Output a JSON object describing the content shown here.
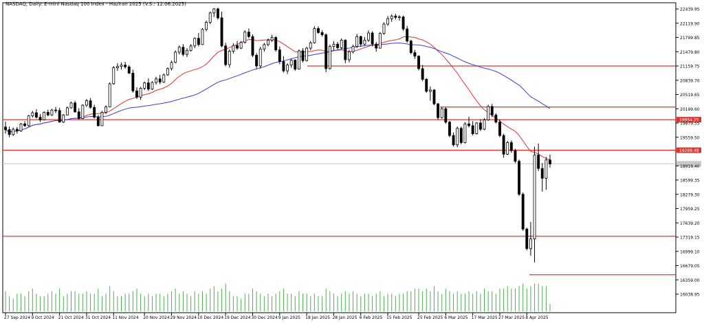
{
  "chart_data": {
    "type": "candlestick",
    "title": "NASDAQ, Daily: E-mini Nasdaq 100 Index - Haziran 2025 (V.S.: 12.06.2025)",
    "colors": {
      "bull": "#ffffff",
      "bear": "#000000",
      "ma_fast": "#e0322d",
      "ma_slow": "#3a3ad8",
      "volume": "#4caf50",
      "level_line": "#e0322d",
      "level_label_bg": "#e0322d"
    },
    "y_ticks": [
      "22439.95",
      "22119.90",
      "21799.85",
      "21479.80",
      "21159.75",
      "20839.70",
      "20519.65",
      "20199.60",
      "19879.55",
      "19559.50",
      "18919.40",
      "18599.35",
      "18279.30",
      "17959.25",
      "17639.20",
      "17319.15",
      "16999.10",
      "16679.05",
      "16359.00",
      "16038.95"
    ],
    "x_ticks": [
      "27 Sep 2024",
      "9 Oct 2024",
      "21 Oct 2024",
      "31 Oct 2024",
      "11 Nov 2024",
      "20 Nov 2024",
      "29 Nov 2024",
      "10 Dec 2024",
      "19 Dec 2024",
      "30 Dec 2024",
      "9 Jan 2025",
      "18 Jan 2025",
      "28 Jan 2025",
      "6 Feb 2025",
      "15 Feb 2025",
      "25 Feb 2025",
      "6 Mar 2025",
      "17 Mar 2025",
      "27 Mar 2025",
      "8 Apr 2025"
    ],
    "horizontal_levels": [
      {
        "price": 21159.75,
        "label": ""
      },
      {
        "price": 20238,
        "label": ""
      },
      {
        "price": 19954.25,
        "label": "19954.25"
      },
      {
        "price": 19269.48,
        "label": "19269.48"
      },
      {
        "price": 17339,
        "label": ""
      },
      {
        "price": 16475,
        "label": ""
      }
    ],
    "current_price": 18964,
    "candles": [
      [
        19790,
        19910,
        19640,
        19730
      ],
      [
        19730,
        19800,
        19560,
        19620
      ],
      [
        19620,
        19780,
        19590,
        19740
      ],
      [
        19740,
        19790,
        19640,
        19700
      ],
      [
        19700,
        19880,
        19680,
        19860
      ],
      [
        19860,
        19920,
        19790,
        19820
      ],
      [
        19820,
        20060,
        19800,
        20040
      ],
      [
        20040,
        20150,
        20000,
        20110
      ],
      [
        20110,
        20190,
        19980,
        20010
      ],
      [
        20010,
        20080,
        19900,
        19950
      ],
      [
        19950,
        20140,
        19940,
        20120
      ],
      [
        20120,
        20180,
        20030,
        20060
      ],
      [
        20060,
        20200,
        20040,
        20170
      ],
      [
        20170,
        20240,
        20100,
        20160
      ],
      [
        20160,
        20220,
        19890,
        19900
      ],
      [
        19900,
        20080,
        19880,
        20060
      ],
      [
        20060,
        20250,
        20050,
        20220
      ],
      [
        20220,
        20360,
        20200,
        20330
      ],
      [
        20330,
        20380,
        20110,
        20130
      ],
      [
        20130,
        20210,
        19950,
        19980
      ],
      [
        19980,
        20300,
        19970,
        20280
      ],
      [
        20280,
        20420,
        20240,
        20380
      ],
      [
        20380,
        20440,
        20200,
        20230
      ],
      [
        20230,
        20290,
        19980,
        20010
      ],
      [
        20010,
        20060,
        19800,
        19820
      ],
      [
        19820,
        20150,
        19810,
        20120
      ],
      [
        20120,
        20280,
        20080,
        20240
      ],
      [
        20240,
        20790,
        20230,
        20760
      ],
      [
        20760,
        21160,
        20740,
        21120
      ],
      [
        21120,
        21220,
        21050,
        21150
      ],
      [
        21150,
        21240,
        21080,
        21180
      ],
      [
        21180,
        21250,
        21100,
        21140
      ],
      [
        21140,
        21180,
        20980,
        21000
      ],
      [
        21000,
        21080,
        20560,
        20600
      ],
      [
        20600,
        20680,
        20420,
        20460
      ],
      [
        20460,
        20690,
        20400,
        20660
      ],
      [
        20660,
        20810,
        20620,
        20780
      ],
      [
        20780,
        20880,
        20600,
        20640
      ],
      [
        20640,
        20820,
        20620,
        20790
      ],
      [
        20790,
        20920,
        20740,
        20870
      ],
      [
        20870,
        20960,
        20750,
        20800
      ],
      [
        20800,
        20990,
        20780,
        20960
      ],
      [
        20960,
        21130,
        20940,
        21100
      ],
      [
        21100,
        21280,
        21060,
        21240
      ],
      [
        21240,
        21510,
        21220,
        21470
      ],
      [
        21470,
        21620,
        21420,
        21580
      ],
      [
        21580,
        21650,
        21380,
        21420
      ],
      [
        21420,
        21560,
        21360,
        21510
      ],
      [
        21510,
        21650,
        21480,
        21610
      ],
      [
        21610,
        21800,
        21560,
        21780
      ],
      [
        21780,
        21900,
        21600,
        21640
      ],
      [
        21640,
        22010,
        21630,
        21980
      ],
      [
        21980,
        22180,
        21940,
        22140
      ],
      [
        22140,
        22380,
        22100,
        22350
      ],
      [
        22350,
        22460,
        22260,
        22440
      ],
      [
        22440,
        22470,
        22200,
        22240
      ],
      [
        22240,
        22380,
        21580,
        21610
      ],
      [
        21610,
        21680,
        21150,
        21190
      ],
      [
        21190,
        21530,
        21120,
        21490
      ],
      [
        21490,
        21670,
        21440,
        21620
      ],
      [
        21620,
        21720,
        21520,
        21560
      ],
      [
        21560,
        21720,
        21540,
        21690
      ],
      [
        21690,
        21960,
        21660,
        21920
      ],
      [
        21920,
        22000,
        21780,
        21820
      ],
      [
        21820,
        21870,
        21360,
        21400
      ],
      [
        21400,
        21450,
        21100,
        21160
      ],
      [
        21160,
        21590,
        21100,
        21540
      ],
      [
        21540,
        21680,
        21480,
        21640
      ],
      [
        21640,
        21780,
        21600,
        21740
      ],
      [
        21740,
        21860,
        21700,
        21800
      ],
      [
        21800,
        21830,
        21480,
        21520
      ],
      [
        21520,
        21600,
        21200,
        21260
      ],
      [
        21260,
        21380,
        21010,
        21050
      ],
      [
        21050,
        21220,
        20980,
        21180
      ],
      [
        21180,
        21320,
        21120,
        21290
      ],
      [
        21290,
        21310,
        21050,
        21090
      ],
      [
        21090,
        21530,
        21080,
        21500
      ],
      [
        21500,
        21560,
        21240,
        21280
      ],
      [
        21280,
        21590,
        21260,
        21560
      ],
      [
        21560,
        21720,
        21510,
        21680
      ],
      [
        21680,
        22050,
        21660,
        22000
      ],
      [
        22000,
        22050,
        21880,
        21910
      ],
      [
        21910,
        21960,
        21820,
        21860
      ],
      [
        21860,
        21890,
        21020,
        21100
      ],
      [
        21100,
        21640,
        21080,
        21600
      ],
      [
        21600,
        21720,
        21520,
        21650
      ],
      [
        21650,
        21700,
        21520,
        21570
      ],
      [
        21570,
        21780,
        21540,
        21740
      ],
      [
        21740,
        21760,
        21220,
        21300
      ],
      [
        21300,
        21520,
        21240,
        21480
      ],
      [
        21480,
        21640,
        21440,
        21600
      ],
      [
        21600,
        21880,
        21560,
        21820
      ],
      [
        21820,
        21840,
        21590,
        21650
      ],
      [
        21650,
        21810,
        21620,
        21740
      ],
      [
        21740,
        21960,
        21700,
        21900
      ],
      [
        21900,
        21940,
        21600,
        21650
      ],
      [
        21650,
        21700,
        21480,
        21560
      ],
      [
        21560,
        21920,
        21550,
        21890
      ],
      [
        21890,
        22140,
        21860,
        22100
      ],
      [
        22100,
        22280,
        22060,
        22220
      ],
      [
        22220,
        22320,
        22150,
        22280
      ],
      [
        22280,
        22330,
        22200,
        22250
      ],
      [
        22250,
        22300,
        22180,
        22260
      ],
      [
        22260,
        22290,
        21950,
        21990
      ],
      [
        21990,
        22060,
        21680,
        21720
      ],
      [
        21720,
        21750,
        21420,
        21460
      ],
      [
        21460,
        21520,
        21320,
        21380
      ],
      [
        21380,
        21400,
        21060,
        21100
      ],
      [
        21100,
        21180,
        20820,
        20860
      ],
      [
        20860,
        20890,
        20560,
        20590
      ],
      [
        20590,
        20700,
        20380,
        20620
      ],
      [
        20620,
        20640,
        20280,
        20310
      ],
      [
        20310,
        20330,
        19950,
        20000
      ],
      [
        20000,
        20240,
        19980,
        20200
      ],
      [
        20200,
        20230,
        19860,
        19900
      ],
      [
        19900,
        19930,
        19560,
        19600
      ],
      [
        19600,
        19670,
        19350,
        19390
      ],
      [
        19390,
        19800,
        19340,
        19760
      ],
      [
        19760,
        19800,
        19400,
        19440
      ],
      [
        19440,
        19900,
        19420,
        19860
      ],
      [
        19860,
        20020,
        19780,
        19820
      ],
      [
        19820,
        19920,
        19600,
        19640
      ],
      [
        19640,
        19900,
        19620,
        19880
      ],
      [
        19880,
        19960,
        19700,
        19740
      ],
      [
        19740,
        19990,
        19720,
        19950
      ],
      [
        19950,
        20290,
        19930,
        20250
      ],
      [
        20250,
        20310,
        20010,
        20060
      ],
      [
        20060,
        20100,
        19870,
        19900
      ],
      [
        19900,
        19960,
        19560,
        19600
      ],
      [
        19600,
        19640,
        19100,
        19180
      ],
      [
        19180,
        19480,
        19160,
        19440
      ],
      [
        19440,
        19490,
        19210,
        19260
      ],
      [
        19260,
        19300,
        18980,
        19020
      ],
      [
        19020,
        19060,
        18240,
        18280
      ],
      [
        18280,
        18320,
        17460,
        17500
      ],
      [
        17500,
        17530,
        17020,
        17060
      ],
      [
        17060,
        17660,
        16900,
        17280
      ],
      [
        17280,
        19350,
        16750,
        19160
      ],
      [
        19160,
        19420,
        18800,
        18860
      ],
      [
        18860,
        18980,
        18340,
        18640
      ],
      [
        18640,
        19120,
        18380,
        19050
      ],
      [
        19050,
        19170,
        18880,
        18960
      ]
    ],
    "volume": [
      8,
      6,
      5,
      7,
      7,
      6,
      8,
      9,
      7,
      6,
      6,
      7,
      8,
      7,
      9,
      6,
      7,
      8,
      8,
      7,
      7,
      8,
      7,
      7,
      9,
      6,
      7,
      10,
      8,
      6,
      6,
      7,
      7,
      8,
      9,
      7,
      6,
      7,
      6,
      7,
      7,
      6,
      7,
      8,
      9,
      7,
      8,
      7,
      6,
      8,
      7,
      8,
      7,
      9,
      10,
      8,
      9,
      11,
      8,
      6,
      6,
      5,
      7,
      7,
      9,
      8,
      7,
      6,
      7,
      6,
      7,
      8,
      9,
      7,
      7,
      6,
      8,
      7,
      7,
      6,
      7,
      6,
      6,
      9,
      8,
      7,
      6,
      7,
      8,
      7,
      8,
      7,
      6,
      7,
      7,
      6,
      7,
      8,
      6,
      7,
      7,
      6,
      7,
      7,
      8,
      8,
      9,
      9,
      8,
      9,
      8,
      10,
      8,
      7,
      9,
      8,
      7,
      8,
      7,
      7,
      8,
      7,
      8,
      7,
      9,
      8,
      8,
      7,
      9,
      9,
      10,
      9,
      9,
      10,
      11,
      9,
      10,
      11,
      11,
      10,
      10,
      3
    ]
  }
}
